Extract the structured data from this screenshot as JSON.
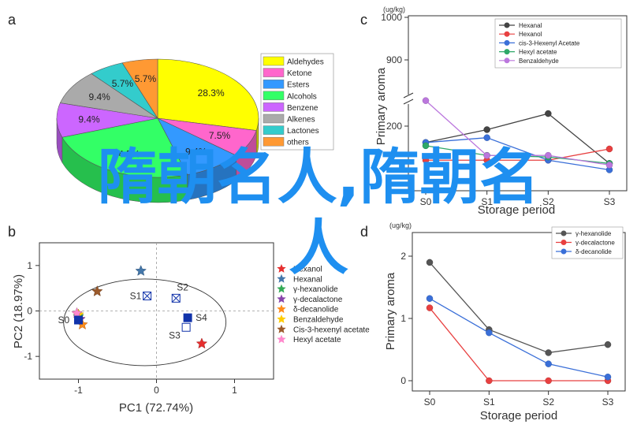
{
  "panels": {
    "a": "a",
    "b": "b",
    "c": "c",
    "d": "d"
  },
  "overlay_text": {
    "line1": "隋朝名人,隋朝名",
    "line2": "人"
  },
  "chart_data": [
    {
      "id": "a",
      "type": "pie",
      "title": "",
      "slices": [
        {
          "name": "Aldehydes",
          "value": 28.3,
          "label": "28.3%",
          "color": "#ffff00"
        },
        {
          "name": "Ketone",
          "value": 7.5,
          "label": "7.5%",
          "color": "#ff66cc"
        },
        {
          "name": "Esters",
          "value": 9.4,
          "label": "9.4%",
          "color": "#3399ff"
        },
        {
          "name": "Alcohols",
          "value": 24.5,
          "label": "24.5%",
          "color": "#33ff66"
        },
        {
          "name": "Benzene",
          "value": 9.4,
          "label": "9.4%",
          "color": "#cc66ff"
        },
        {
          "name": "Alkenes",
          "value": 9.4,
          "label": "9.4%",
          "color": "#aaaaaa"
        },
        {
          "name": "Lactones",
          "value": 5.7,
          "label": "5.7%",
          "color": "#33cccc"
        },
        {
          "name": "others",
          "value": 5.7,
          "label": "5.7%",
          "color": "#ff9933"
        }
      ],
      "legend_position": "right"
    },
    {
      "id": "b",
      "type": "scatter",
      "xlabel": "PC1 (72.74%)",
      "ylabel": "PC2 (18.97%)",
      "xlim": [
        -1.5,
        1.5
      ],
      "ylim": [
        -1.5,
        1.5
      ],
      "xticks": [
        "-1",
        "0",
        "1"
      ],
      "yticks": [
        "1",
        "0",
        "-1"
      ],
      "points": [
        {
          "label": "S0",
          "x": -1.0,
          "y": -0.2
        },
        {
          "label": "S1",
          "x": -0.12,
          "y": 0.33
        },
        {
          "label": "S2",
          "x": 0.25,
          "y": 0.28
        },
        {
          "label": "S3",
          "x": 0.38,
          "y": -0.36
        },
        {
          "label": "S4",
          "x": 0.4,
          "y": -0.15
        }
      ],
      "loadings": [
        {
          "name": "Hexanol",
          "x": 0.58,
          "y": -0.72,
          "color": "#e62e2e"
        },
        {
          "name": "Hexanal",
          "x": -0.2,
          "y": 0.88,
          "color": "#4477aa"
        },
        {
          "name": "γ-hexanolide",
          "x": -1.0,
          "y": -0.12,
          "color": "#33aa55"
        },
        {
          "name": "γ-decalactone",
          "x": -0.98,
          "y": -0.18,
          "color": "#8844aa"
        },
        {
          "name": "δ-decanolide",
          "x": -0.95,
          "y": -0.3,
          "color": "#ff8c1a"
        },
        {
          "name": "Benzaldehyde",
          "x": -1.0,
          "y": -0.08,
          "color": "#ffcc00"
        },
        {
          "name": "Cis-3-hexenyl acetate",
          "x": -0.76,
          "y": 0.43,
          "color": "#9b5a2b"
        },
        {
          "name": "Hexyl acetate",
          "x": -1.02,
          "y": -0.05,
          "color": "#ff88cc"
        }
      ],
      "legend_position": "right"
    },
    {
      "id": "c",
      "type": "line",
      "unit_label": "(ug/kg)",
      "ylabel": "Primary aroma",
      "xlabel": "Storage period",
      "categories": [
        "S0",
        "S1",
        "S2",
        "S3"
      ],
      "yticks": [
        "1000",
        "900",
        "200"
      ],
      "axis_break": true,
      "series": [
        {
          "name": "Hexanal",
          "color": "#444444",
          "values": [
            150,
            190,
            240,
            85
          ]
        },
        {
          "name": "Hexanol",
          "color": "#e84040",
          "values": [
            95,
            95,
            95,
            130
          ]
        },
        {
          "name": "cis-3-Hexenyl Acetate",
          "color": "#3a6fd8",
          "values": [
            150,
            165,
            95,
            65
          ]
        },
        {
          "name": "Hexyl acetate",
          "color": "#2fa868",
          "values": [
            140,
            110,
            105,
            85
          ]
        },
        {
          "name": "Benzaldehyde",
          "color": "#bb77dd",
          "values": [
            830,
            720,
            110,
            80
          ]
        }
      ],
      "legend_position": "top-right"
    },
    {
      "id": "d",
      "type": "line",
      "unit_label": "(ug/kg)",
      "ylabel": "Primary aroma",
      "xlabel": "Storage period",
      "categories": [
        "S0",
        "S1",
        "S2",
        "S3"
      ],
      "ylim": [
        0,
        2.2
      ],
      "yticks": [
        "0",
        "1",
        "2"
      ],
      "series": [
        {
          "name": "γ-hexanolide",
          "color": "#555555",
          "values": [
            1.9,
            0.82,
            0.45,
            0.58
          ]
        },
        {
          "name": "γ-decalactone",
          "color": "#e84040",
          "values": [
            1.17,
            0.0,
            0.0,
            0.0
          ]
        },
        {
          "name": "δ-decanolide",
          "color": "#3a6fd8",
          "values": [
            1.32,
            0.77,
            0.27,
            0.06
          ]
        }
      ],
      "legend_position": "top-right"
    }
  ]
}
